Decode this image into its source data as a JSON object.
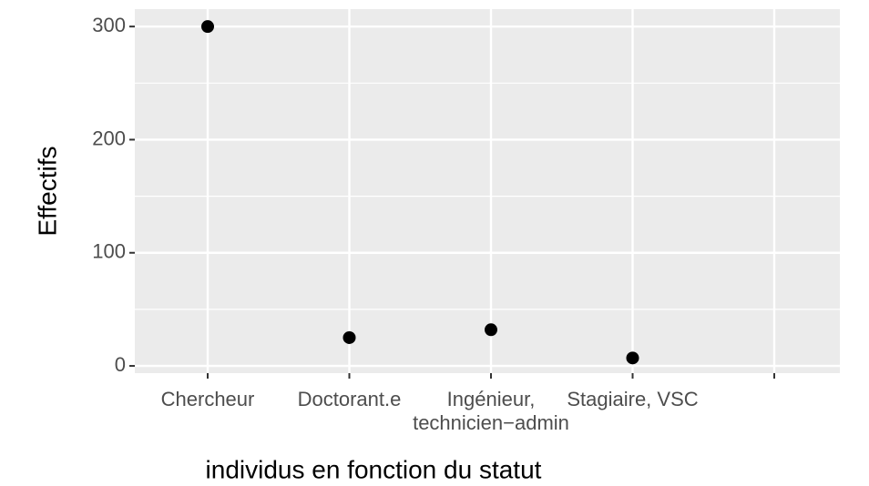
{
  "chart_data": {
    "type": "scatter",
    "categories": [
      "Chercheur",
      "Doctorant.e",
      "Ingénieur,\ntechnicien−admin",
      "Stagiaire, VSC",
      null
    ],
    "values": [
      300,
      25,
      32,
      7,
      null
    ],
    "color": "#000000",
    "x_label": "individus en fonction du statut",
    "y_label": "Effectifs",
    "ylim": [
      -6.4,
      315.4
    ],
    "yticks": [
      0,
      100,
      200,
      300
    ],
    "minor_yticks": [
      50,
      150,
      250
    ],
    "grid": true
  }
}
